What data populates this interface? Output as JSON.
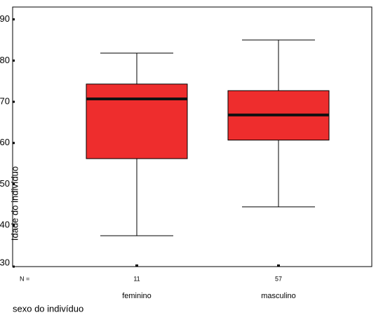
{
  "chart_data": {
    "type": "box",
    "y_label": "Idade do indivíduo",
    "x_label": "sexo do indivíduo",
    "n_label": "N =",
    "categories": [
      "feminino",
      "masculino"
    ],
    "n": [
      11,
      57
    ],
    "color": "#ee2d2d",
    "boxes": [
      {
        "min": 37.5,
        "q1": 56.2,
        "median": 70.7,
        "q3": 74.3,
        "max": 81.8
      },
      {
        "min": 44.5,
        "q1": 60.7,
        "median": 66.8,
        "q3": 72.7,
        "max": 85
      }
    ],
    "ylim": [
      30,
      93
    ],
    "yticks": [
      30,
      40,
      50,
      60,
      70,
      80,
      90
    ]
  }
}
